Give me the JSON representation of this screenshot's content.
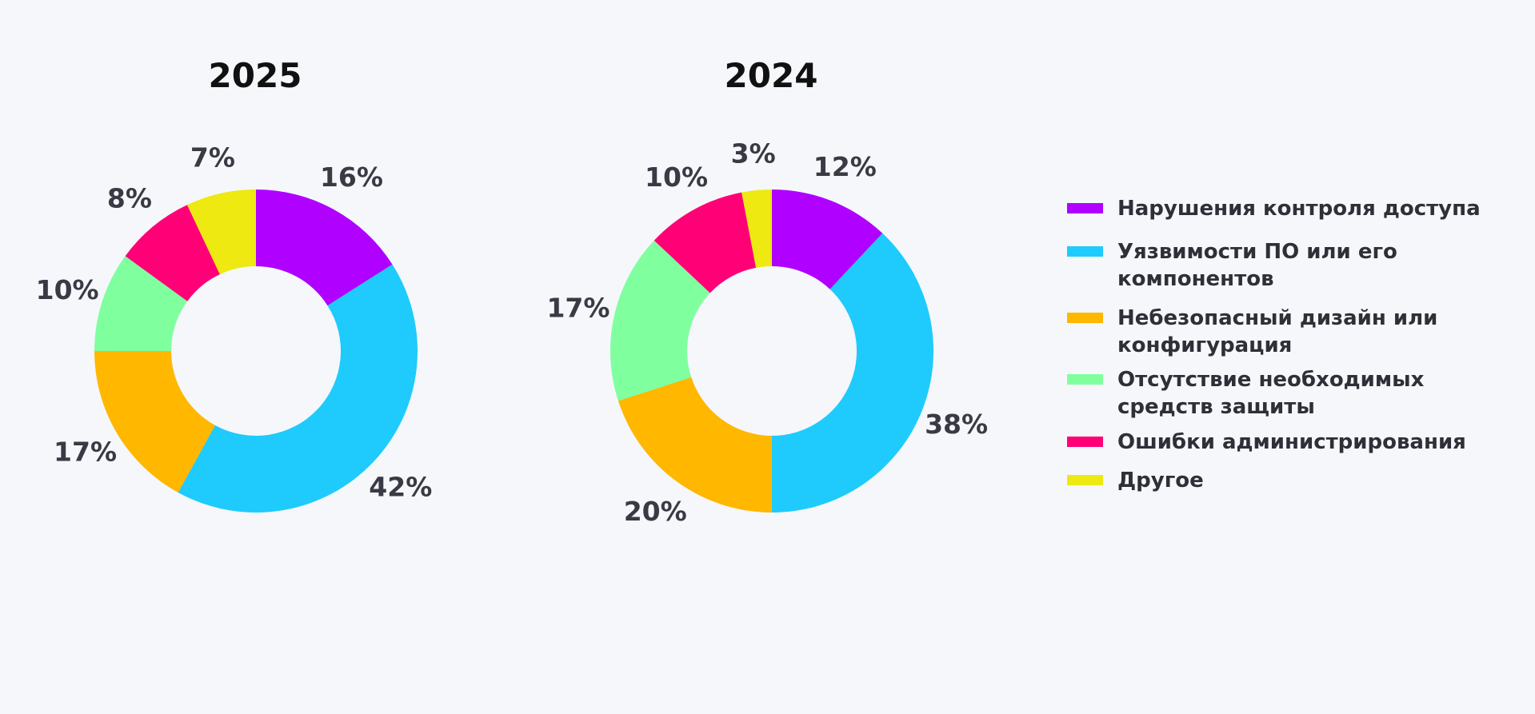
{
  "legend": [
    {
      "label": "Нарушения контроля доступа",
      "color": "#b000ff"
    },
    {
      "label": "Уязвимости ПО или его компонентов",
      "color": "#1ecbfc"
    },
    {
      "label": "Небезопасный дизайн или конфигурация",
      "color": "#ffb700"
    },
    {
      "label": "Отсутствие необходимых средств защиты",
      "color": "#80ff9f"
    },
    {
      "label": "Ошибки администрирования",
      "color": "#ff0076"
    },
    {
      "label": "Другое",
      "color": "#ede911"
    }
  ],
  "chart_data": [
    {
      "type": "pie",
      "title": "2025",
      "categories": [
        "Нарушения контроля доступа",
        "Уязвимости ПО или его компонентов",
        "Небезопасный дизайн или конфигурация",
        "Отсутствие необходимых средств защиты",
        "Ошибки администрирования",
        "Другое"
      ],
      "values": [
        16,
        42,
        17,
        10,
        8,
        7
      ],
      "labels": [
        "16%",
        "42%",
        "17%",
        "10%",
        "8%",
        "7%"
      ]
    },
    {
      "type": "pie",
      "title": "2024",
      "categories": [
        "Нарушения контроля доступа",
        "Уязвимости ПО или его компонентов",
        "Небезопасный дизайн или конфигурация",
        "Отсутствие необходимых средств защиты",
        "Ошибки администрирования",
        "Другое"
      ],
      "values": [
        12,
        38,
        20,
        17,
        10,
        3
      ],
      "labels": [
        "12%",
        "38%",
        "20%",
        "17%",
        "10%",
        "3%"
      ]
    }
  ]
}
